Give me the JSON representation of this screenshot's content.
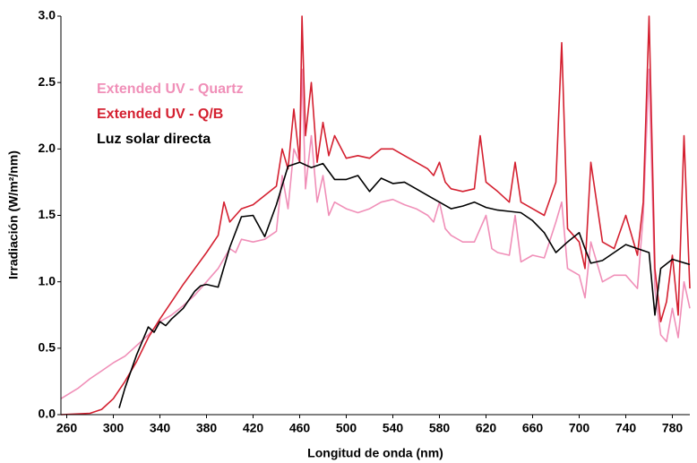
{
  "chart_data": {
    "type": "line",
    "x_label": "Longitud de onda (nm)",
    "y_label": "Irradiación (W/m²/nm)",
    "xlim": [
      255,
      795
    ],
    "ylim": [
      0,
      3
    ],
    "xticks": [
      260,
      300,
      340,
      380,
      420,
      460,
      500,
      540,
      580,
      620,
      660,
      700,
      740,
      780
    ],
    "yticks": [
      {
        "value": 0,
        "label": "0.0"
      },
      0.5,
      {
        "value": 1,
        "label": "1.0"
      },
      1.5,
      {
        "value": 2,
        "label": "2.0"
      },
      2.5,
      {
        "value": 3,
        "label": "3.0"
      }
    ],
    "grid": false,
    "series": [
      {
        "name": "Extended UV - Quartz",
        "color": "#f08fb8",
        "x": [
          255,
          270,
          280,
          290,
          300,
          310,
          320,
          330,
          340,
          350,
          360,
          370,
          380,
          390,
          400,
          405,
          410,
          420,
          430,
          440,
          445,
          450,
          455,
          460,
          462,
          465,
          470,
          475,
          480,
          485,
          490,
          500,
          510,
          520,
          530,
          540,
          550,
          560,
          570,
          575,
          580,
          585,
          590,
          600,
          610,
          620,
          625,
          630,
          640,
          645,
          650,
          660,
          670,
          680,
          685,
          690,
          700,
          705,
          710,
          720,
          730,
          740,
          750,
          755,
          760,
          765,
          770,
          775,
          780,
          785,
          790,
          795
        ],
        "values": [
          0.12,
          0.2,
          0.27,
          0.33,
          0.39,
          0.44,
          0.52,
          0.6,
          0.7,
          0.75,
          0.82,
          0.9,
          1.0,
          1.1,
          1.25,
          1.22,
          1.32,
          1.3,
          1.32,
          1.38,
          1.8,
          1.55,
          2.0,
          1.9,
          2.6,
          1.7,
          2.1,
          1.6,
          1.8,
          1.5,
          1.6,
          1.55,
          1.52,
          1.55,
          1.6,
          1.62,
          1.58,
          1.55,
          1.5,
          1.45,
          1.6,
          1.4,
          1.35,
          1.3,
          1.3,
          1.5,
          1.25,
          1.22,
          1.2,
          1.5,
          1.15,
          1.2,
          1.18,
          1.45,
          1.6,
          1.1,
          1.05,
          0.88,
          1.3,
          1.0,
          1.05,
          1.05,
          0.95,
          1.5,
          2.6,
          0.95,
          0.6,
          0.55,
          0.8,
          0.58,
          1.0,
          0.8
        ]
      },
      {
        "name": "Extended UV - Q/B",
        "color": "#d42030",
        "x": [
          255,
          280,
          290,
          300,
          310,
          320,
          330,
          340,
          350,
          360,
          370,
          380,
          390,
          395,
          400,
          410,
          420,
          430,
          440,
          445,
          450,
          455,
          460,
          462,
          465,
          470,
          475,
          480,
          485,
          490,
          500,
          510,
          520,
          530,
          540,
          550,
          560,
          570,
          575,
          580,
          585,
          590,
          600,
          610,
          615,
          620,
          630,
          640,
          645,
          650,
          660,
          670,
          680,
          685,
          690,
          700,
          705,
          710,
          720,
          730,
          740,
          750,
          755,
          760,
          765,
          770,
          775,
          780,
          785,
          790,
          795
        ],
        "values": [
          0,
          0.01,
          0.04,
          0.12,
          0.25,
          0.4,
          0.58,
          0.72,
          0.85,
          0.98,
          1.1,
          1.22,
          1.35,
          1.6,
          1.45,
          1.55,
          1.58,
          1.65,
          1.72,
          2.0,
          1.85,
          2.3,
          1.9,
          3.0,
          2.1,
          2.5,
          1.9,
          2.2,
          1.95,
          2.1,
          1.93,
          1.95,
          1.93,
          2.0,
          2.0,
          1.95,
          1.9,
          1.85,
          1.8,
          1.9,
          1.75,
          1.7,
          1.68,
          1.7,
          2.1,
          1.75,
          1.68,
          1.6,
          1.9,
          1.6,
          1.55,
          1.5,
          1.75,
          2.8,
          1.4,
          1.3,
          1.1,
          1.9,
          1.3,
          1.25,
          1.5,
          1.2,
          1.6,
          3.0,
          1.1,
          0.7,
          0.85,
          1.2,
          0.75,
          2.1,
          0.95
        ]
      },
      {
        "name": "Luz solar directa",
        "color": "#000000",
        "x": [
          305,
          310,
          320,
          330,
          335,
          340,
          345,
          350,
          360,
          370,
          375,
          380,
          390,
          400,
          410,
          420,
          430,
          440,
          450,
          460,
          470,
          480,
          490,
          500,
          510,
          520,
          530,
          540,
          550,
          560,
          570,
          580,
          590,
          600,
          610,
          620,
          630,
          640,
          650,
          660,
          670,
          680,
          690,
          700,
          705,
          710,
          720,
          730,
          740,
          750,
          760,
          765,
          770,
          780,
          795
        ],
        "values": [
          0.05,
          0.2,
          0.45,
          0.66,
          0.62,
          0.7,
          0.67,
          0.72,
          0.8,
          0.93,
          0.97,
          0.98,
          0.96,
          1.26,
          1.49,
          1.5,
          1.34,
          1.58,
          1.87,
          1.9,
          1.86,
          1.89,
          1.77,
          1.77,
          1.8,
          1.68,
          1.78,
          1.74,
          1.75,
          1.7,
          1.65,
          1.6,
          1.55,
          1.57,
          1.6,
          1.56,
          1.54,
          1.53,
          1.52,
          1.46,
          1.37,
          1.22,
          1.3,
          1.37,
          1.25,
          1.14,
          1.16,
          1.22,
          1.28,
          1.25,
          1.22,
          0.75,
          1.1,
          1.17,
          1.13
        ]
      }
    ]
  }
}
